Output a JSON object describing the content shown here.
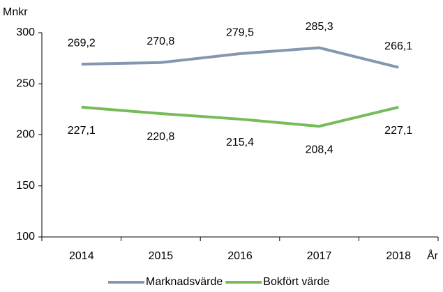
{
  "chart_data": {
    "type": "line",
    "y_label": "Mnkr",
    "x_label": "År",
    "categories": [
      "2014",
      "2015",
      "2016",
      "2017",
      "2018"
    ],
    "series": [
      {
        "name": "Marknadsvärde",
        "color": "#8497b0",
        "values": [
          269.2,
          270.8,
          279.5,
          285.3,
          266.1
        ],
        "value_labels": [
          "269,2",
          "270,8",
          "279,5",
          "285,3",
          "266,1"
        ]
      },
      {
        "name": "Bokfört värde",
        "color": "#77bb5a",
        "values": [
          227.1,
          220.8,
          215.4,
          208.4,
          227.1
        ],
        "value_labels": [
          "227,1",
          "220,8",
          "215,4",
          "208,4",
          "227,1"
        ]
      }
    ],
    "ylim": [
      100,
      300
    ],
    "yticks": [
      100,
      150,
      200,
      250,
      300
    ],
    "grid": false,
    "legend": "bottom"
  }
}
